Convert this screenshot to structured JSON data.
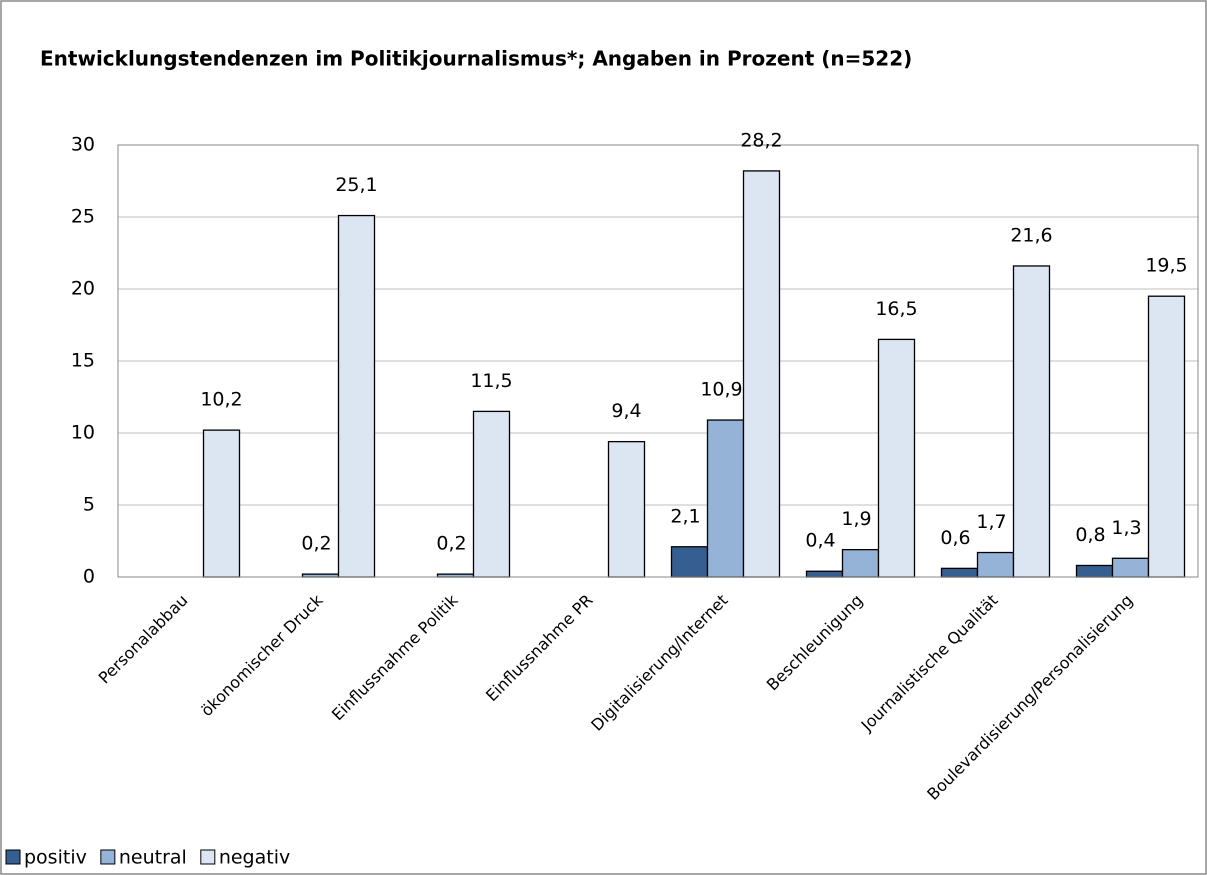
{
  "chart_data": {
    "type": "bar",
    "title": "Entwicklungstendenzen im Politikjournalismus*; Angaben in Prozent (n=522)",
    "categories": [
      "Personalabbau",
      "ökonomischer Druck",
      "Einflussnahme Politik",
      "Einflussnahme PR",
      "Digitalisierung/Internet",
      "Beschleunigung",
      "Journalistische Qualität",
      "Boulevardisierung/Personalisierung"
    ],
    "series": [
      {
        "name": "positiv",
        "color": "#365f91",
        "values": [
          null,
          null,
          null,
          null,
          2.1,
          0.4,
          0.6,
          0.8
        ],
        "value_labels": [
          null,
          null,
          null,
          null,
          "2,1",
          "0,4",
          "0,6",
          "0,8"
        ]
      },
      {
        "name": "neutral",
        "color": "#95b3d7",
        "values": [
          null,
          0.2,
          0.2,
          null,
          10.9,
          1.9,
          1.7,
          1.3
        ],
        "value_labels": [
          null,
          "0,2",
          "0,2",
          null,
          "10,9",
          "1,9",
          "1,7",
          "1,3"
        ]
      },
      {
        "name": "negativ",
        "color": "#dce6f2",
        "values": [
          10.2,
          25.1,
          11.5,
          9.4,
          28.2,
          16.5,
          21.6,
          19.5
        ],
        "value_labels": [
          "10,2",
          "25,1",
          "11,5",
          "9,4",
          "28,2",
          "16,5",
          "21,6",
          "19,5"
        ]
      }
    ],
    "ylim": [
      0,
      30
    ],
    "yticks": [
      0,
      5,
      10,
      15,
      20,
      25,
      30
    ],
    "grid": true,
    "legend": "bottom-left"
  }
}
